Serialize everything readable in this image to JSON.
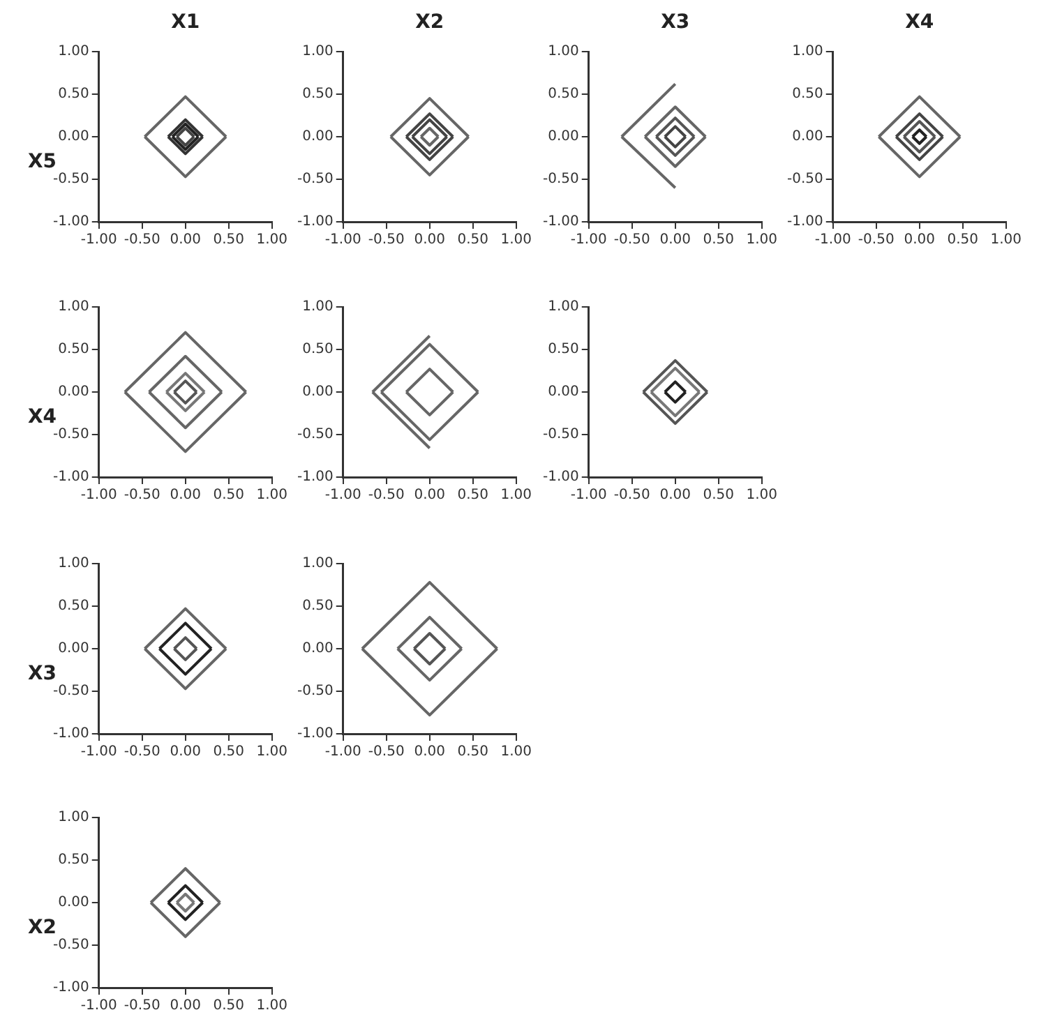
{
  "chart_data": [
    {
      "type": "line",
      "title": "X1",
      "ylabel": "X5",
      "xlim": [
        -1,
        1
      ],
      "ylim": [
        -1,
        1
      ],
      "xticks": [
        {
          "value": -1,
          "label": "-1.00"
        },
        {
          "value": -0.5,
          "label": "-0.50"
        },
        {
          "value": 0,
          "label": "0.00"
        },
        {
          "value": 0.5,
          "label": "0.50"
        },
        {
          "value": 1,
          "label": "1.00"
        }
      ],
      "yticks": [
        {
          "value": -1,
          "label": "-1.00"
        },
        {
          "value": -0.5,
          "label": "-0.50"
        },
        {
          "value": 0,
          "label": "0.00"
        },
        {
          "value": 0.5,
          "label": "0.50"
        },
        {
          "value": 1,
          "label": "1.00"
        }
      ],
      "grid": false,
      "legend": false,
      "marker": "none",
      "series": [
        {
          "color": "#666666",
          "x": [
            -0.47,
            0,
            0.47
          ],
          "values": [
            0,
            0.47,
            0
          ]
        },
        {
          "color": "#666666",
          "x": [
            -0.47,
            0,
            0.47
          ],
          "values": [
            0,
            -0.47,
            0
          ]
        },
        {
          "color": "#333333",
          "x": [
            -0.2,
            0,
            0.2
          ],
          "values": [
            0,
            0.2,
            0
          ]
        },
        {
          "color": "#333333",
          "x": [
            -0.2,
            0,
            0.2
          ],
          "values": [
            0,
            -0.2,
            0
          ]
        },
        {
          "color": "#222222",
          "x": [
            -0.15,
            0,
            0.15
          ],
          "values": [
            0,
            0.15,
            0
          ]
        },
        {
          "color": "#222222",
          "x": [
            -0.15,
            0,
            0.15
          ],
          "values": [
            0,
            -0.15,
            0
          ]
        },
        {
          "color": "#444444",
          "x": [
            -0.1,
            0,
            0.1
          ],
          "values": [
            0,
            0.1,
            0
          ]
        },
        {
          "color": "#444444",
          "x": [
            -0.1,
            0,
            0.1
          ],
          "values": [
            0,
            -0.1,
            0
          ]
        }
      ]
    },
    {
      "type": "line",
      "title": "X2",
      "xlim": [
        -1,
        1
      ],
      "ylim": [
        -1,
        1
      ],
      "xticks": [
        {
          "value": -1,
          "label": "-1.00"
        },
        {
          "value": -0.5,
          "label": "-0.50"
        },
        {
          "value": 0,
          "label": "0.00"
        },
        {
          "value": 0.5,
          "label": "0.50"
        },
        {
          "value": 1,
          "label": "1.00"
        }
      ],
      "yticks": [
        {
          "value": -1,
          "label": "-1.00"
        },
        {
          "value": -0.5,
          "label": "-0.50"
        },
        {
          "value": 0,
          "label": "0.00"
        },
        {
          "value": 0.5,
          "label": "0.50"
        },
        {
          "value": 1,
          "label": "1.00"
        }
      ],
      "grid": false,
      "legend": false,
      "marker": "none",
      "series": [
        {
          "color": "#666666",
          "x": [
            -0.45,
            0,
            0.45
          ],
          "values": [
            0,
            0.45,
            0
          ]
        },
        {
          "color": "#666666",
          "x": [
            -0.45,
            0,
            0.45
          ],
          "values": [
            0,
            -0.45,
            0
          ]
        },
        {
          "color": "#444444",
          "x": [
            -0.27,
            0,
            0.27
          ],
          "values": [
            0,
            0.27,
            0
          ]
        },
        {
          "color": "#444444",
          "x": [
            -0.27,
            0,
            0.27
          ],
          "values": [
            0,
            -0.27,
            0
          ]
        },
        {
          "color": "#444444",
          "x": [
            -0.2,
            0,
            0.2
          ],
          "values": [
            0,
            0.2,
            0
          ]
        },
        {
          "color": "#444444",
          "x": [
            -0.2,
            0,
            0.2
          ],
          "values": [
            0,
            -0.2,
            0
          ]
        },
        {
          "color": "#666666",
          "x": [
            -0.1,
            0,
            0.1
          ],
          "values": [
            0,
            0.1,
            0
          ]
        },
        {
          "color": "#666666",
          "x": [
            -0.1,
            0,
            0.1
          ],
          "values": [
            0,
            -0.1,
            0
          ]
        }
      ]
    },
    {
      "type": "line",
      "title": "X3",
      "xlim": [
        -1,
        1
      ],
      "ylim": [
        -1,
        1
      ],
      "xticks": [
        {
          "value": -1,
          "label": "-1.00"
        },
        {
          "value": -0.5,
          "label": "-0.50"
        },
        {
          "value": 0,
          "label": "0.00"
        },
        {
          "value": 0.5,
          "label": "0.50"
        },
        {
          "value": 1,
          "label": "1.00"
        }
      ],
      "yticks": [
        {
          "value": -1,
          "label": "-1.00"
        },
        {
          "value": -0.5,
          "label": "-0.50"
        },
        {
          "value": 0,
          "label": "0.00"
        },
        {
          "value": 0.5,
          "label": "0.50"
        },
        {
          "value": 1,
          "label": "1.00"
        }
      ],
      "grid": false,
      "legend": false,
      "marker": "none",
      "series": [
        {
          "color": "#666666",
          "x": [
            -0.62,
            0
          ],
          "values": [
            0,
            0.62
          ]
        },
        {
          "color": "#666666",
          "x": [
            -0.62,
            0
          ],
          "values": [
            0,
            -0.6
          ]
        },
        {
          "color": "#666666",
          "x": [
            -0.35,
            0,
            0.35
          ],
          "values": [
            0,
            0.35,
            0
          ]
        },
        {
          "color": "#666666",
          "x": [
            -0.35,
            0,
            0.35
          ],
          "values": [
            0,
            -0.35,
            0
          ]
        },
        {
          "color": "#555555",
          "x": [
            -0.22,
            0,
            0.22
          ],
          "values": [
            0,
            0.22,
            0
          ]
        },
        {
          "color": "#555555",
          "x": [
            -0.22,
            0,
            0.22
          ],
          "values": [
            0,
            -0.22,
            0
          ]
        },
        {
          "color": "#444444",
          "x": [
            -0.12,
            0,
            0.12
          ],
          "values": [
            0,
            0.12,
            0
          ]
        },
        {
          "color": "#444444",
          "x": [
            -0.12,
            0,
            0.12
          ],
          "values": [
            0,
            -0.12,
            0
          ]
        }
      ]
    },
    {
      "type": "line",
      "title": "X4",
      "xlim": [
        -1,
        1
      ],
      "ylim": [
        -1,
        1
      ],
      "xticks": [
        {
          "value": -1,
          "label": "-1.00"
        },
        {
          "value": -0.5,
          "label": "-0.50"
        },
        {
          "value": 0,
          "label": "0.00"
        },
        {
          "value": 0.5,
          "label": "0.50"
        },
        {
          "value": 1,
          "label": "1.00"
        }
      ],
      "yticks": [
        {
          "value": -1,
          "label": "-1.00"
        },
        {
          "value": -0.5,
          "label": "-0.50"
        },
        {
          "value": 0,
          "label": "0.00"
        },
        {
          "value": 0.5,
          "label": "0.50"
        },
        {
          "value": 1,
          "label": "1.00"
        }
      ],
      "grid": false,
      "legend": false,
      "marker": "none",
      "series": [
        {
          "color": "#666666",
          "x": [
            -0.47,
            0,
            0.47
          ],
          "values": [
            0,
            0.47,
            0
          ]
        },
        {
          "color": "#666666",
          "x": [
            -0.47,
            0,
            0.47
          ],
          "values": [
            0,
            -0.47,
            0
          ]
        },
        {
          "color": "#444444",
          "x": [
            -0.27,
            0,
            0.27
          ],
          "values": [
            0,
            0.27,
            0
          ]
        },
        {
          "color": "#444444",
          "x": [
            -0.27,
            0,
            0.27
          ],
          "values": [
            0,
            -0.27,
            0
          ]
        },
        {
          "color": "#555555",
          "x": [
            -0.18,
            0,
            0.18
          ],
          "values": [
            0,
            0.18,
            0
          ]
        },
        {
          "color": "#555555",
          "x": [
            -0.18,
            0,
            0.18
          ],
          "values": [
            0,
            -0.18,
            0
          ]
        },
        {
          "color": "#222222",
          "x": [
            -0.08,
            0,
            0.08
          ],
          "values": [
            0,
            0.08,
            0
          ]
        },
        {
          "color": "#222222",
          "x": [
            -0.08,
            0,
            0.08
          ],
          "values": [
            0,
            -0.08,
            0
          ]
        }
      ]
    },
    {
      "type": "line",
      "ylabel": "X4",
      "xlim": [
        -1,
        1
      ],
      "ylim": [
        -1,
        1
      ],
      "xticks": [
        {
          "value": -1,
          "label": "-1.00"
        },
        {
          "value": -0.5,
          "label": "-0.50"
        },
        {
          "value": 0,
          "label": "0.00"
        },
        {
          "value": 0.5,
          "label": "0.50"
        },
        {
          "value": 1,
          "label": "1.00"
        }
      ],
      "yticks": [
        {
          "value": -1,
          "label": "-1.00"
        },
        {
          "value": -0.5,
          "label": "-0.50"
        },
        {
          "value": 0,
          "label": "0.00"
        },
        {
          "value": 0.5,
          "label": "0.50"
        },
        {
          "value": 1,
          "label": "1.00"
        }
      ],
      "grid": false,
      "legend": false,
      "marker": "none",
      "series": [
        {
          "color": "#666666",
          "x": [
            -0.7,
            0,
            0.7
          ],
          "values": [
            0,
            0.7,
            0
          ]
        },
        {
          "color": "#666666",
          "x": [
            -0.7,
            0,
            0.7
          ],
          "values": [
            0,
            -0.7,
            0
          ]
        },
        {
          "color": "#666666",
          "x": [
            -0.42,
            0,
            0.42
          ],
          "values": [
            0,
            0.42,
            0
          ]
        },
        {
          "color": "#666666",
          "x": [
            -0.42,
            0,
            0.42
          ],
          "values": [
            0,
            -0.42,
            0
          ]
        },
        {
          "color": "#777777",
          "x": [
            -0.22,
            0,
            0.22
          ],
          "values": [
            0,
            0.22,
            0
          ]
        },
        {
          "color": "#777777",
          "x": [
            -0.22,
            0,
            0.22
          ],
          "values": [
            0,
            -0.22,
            0
          ]
        },
        {
          "color": "#555555",
          "x": [
            -0.13,
            0,
            0.13
          ],
          "values": [
            0,
            0.13,
            0
          ]
        },
        {
          "color": "#555555",
          "x": [
            -0.13,
            0,
            0.13
          ],
          "values": [
            0,
            -0.13,
            0
          ]
        }
      ]
    },
    {
      "type": "line",
      "xlim": [
        -1,
        1
      ],
      "ylim": [
        -1,
        1
      ],
      "xticks": [
        {
          "value": -1,
          "label": "-1.00"
        },
        {
          "value": -0.5,
          "label": "-0.50"
        },
        {
          "value": 0,
          "label": "0.00"
        },
        {
          "value": 0.5,
          "label": "0.50"
        },
        {
          "value": 1,
          "label": "1.00"
        }
      ],
      "yticks": [
        {
          "value": -1,
          "label": "-1.00"
        },
        {
          "value": -0.5,
          "label": "-0.50"
        },
        {
          "value": 0,
          "label": "0.00"
        },
        {
          "value": 0.5,
          "label": "0.50"
        },
        {
          "value": 1,
          "label": "1.00"
        }
      ],
      "grid": false,
      "legend": false,
      "marker": "none",
      "series": [
        {
          "color": "#666666",
          "x": [
            -0.66,
            0
          ],
          "values": [
            0,
            0.66
          ]
        },
        {
          "color": "#666666",
          "x": [
            -0.66,
            0
          ],
          "values": [
            0,
            -0.66
          ]
        },
        {
          "color": "#666666",
          "x": [
            -0.56,
            0,
            0.56
          ],
          "values": [
            0,
            0.56,
            0
          ]
        },
        {
          "color": "#666666",
          "x": [
            -0.56,
            0,
            0.56
          ],
          "values": [
            0,
            -0.56,
            0
          ]
        },
        {
          "color": "#666666",
          "x": [
            -0.27,
            0,
            0.27
          ],
          "values": [
            0,
            0.27,
            0
          ]
        },
        {
          "color": "#666666",
          "x": [
            -0.27,
            0,
            0.27
          ],
          "values": [
            0,
            -0.27,
            0
          ]
        }
      ]
    },
    {
      "type": "line",
      "xlim": [
        -1,
        1
      ],
      "ylim": [
        -1,
        1
      ],
      "xticks": [
        {
          "value": -1,
          "label": "-1.00"
        },
        {
          "value": -0.5,
          "label": "-0.50"
        },
        {
          "value": 0,
          "label": "0.00"
        },
        {
          "value": 0.5,
          "label": "0.50"
        },
        {
          "value": 1,
          "label": "1.00"
        }
      ],
      "yticks": [
        {
          "value": -1,
          "label": "-1.00"
        },
        {
          "value": -0.5,
          "label": "-0.50"
        },
        {
          "value": 0,
          "label": "0.00"
        },
        {
          "value": 0.5,
          "label": "0.50"
        },
        {
          "value": 1,
          "label": "1.00"
        }
      ],
      "grid": false,
      "legend": false,
      "marker": "none",
      "series": [
        {
          "color": "#555555",
          "x": [
            -0.37,
            0,
            0.37
          ],
          "values": [
            0,
            0.37,
            0
          ]
        },
        {
          "color": "#555555",
          "x": [
            -0.37,
            0,
            0.37
          ],
          "values": [
            0,
            -0.37,
            0
          ]
        },
        {
          "color": "#777777",
          "x": [
            -0.28,
            0,
            0.28
          ],
          "values": [
            0,
            0.28,
            0
          ]
        },
        {
          "color": "#777777",
          "x": [
            -0.28,
            0,
            0.28
          ],
          "values": [
            0,
            -0.28,
            0
          ]
        },
        {
          "color": "#222222",
          "x": [
            -0.12,
            0,
            0.12
          ],
          "values": [
            0,
            0.12,
            0
          ]
        },
        {
          "color": "#222222",
          "x": [
            -0.12,
            0,
            0.12
          ],
          "values": [
            0,
            -0.12,
            0
          ]
        }
      ]
    },
    {
      "type": "line",
      "ylabel": "X3",
      "xlim": [
        -1,
        1
      ],
      "ylim": [
        -1,
        1
      ],
      "xticks": [
        {
          "value": -1,
          "label": "-1.00"
        },
        {
          "value": -0.5,
          "label": "-0.50"
        },
        {
          "value": 0,
          "label": "0.00"
        },
        {
          "value": 0.5,
          "label": "0.50"
        },
        {
          "value": 1,
          "label": "1.00"
        }
      ],
      "yticks": [
        {
          "value": -1,
          "label": "-1.00"
        },
        {
          "value": -0.5,
          "label": "-0.50"
        },
        {
          "value": 0,
          "label": "0.00"
        },
        {
          "value": 0.5,
          "label": "0.50"
        },
        {
          "value": 1,
          "label": "1.00"
        }
      ],
      "grid": false,
      "legend": false,
      "marker": "none",
      "series": [
        {
          "color": "#666666",
          "x": [
            -0.47,
            0,
            0.47
          ],
          "values": [
            0,
            0.47,
            0
          ]
        },
        {
          "color": "#666666",
          "x": [
            -0.47,
            0,
            0.47
          ],
          "values": [
            0,
            -0.47,
            0
          ]
        },
        {
          "color": "#222222",
          "x": [
            -0.3,
            0,
            0.3
          ],
          "values": [
            0,
            0.3,
            0
          ]
        },
        {
          "color": "#222222",
          "x": [
            -0.3,
            0,
            0.3
          ],
          "values": [
            0,
            -0.3,
            0
          ]
        },
        {
          "color": "#555555",
          "x": [
            -0.13,
            0,
            0.13
          ],
          "values": [
            0,
            0.13,
            0
          ]
        },
        {
          "color": "#555555",
          "x": [
            -0.13,
            0,
            0.13
          ],
          "values": [
            0,
            -0.13,
            0
          ]
        }
      ]
    },
    {
      "type": "line",
      "xlim": [
        -1,
        1
      ],
      "ylim": [
        -1,
        1
      ],
      "xticks": [
        {
          "value": -1,
          "label": "-1.00"
        },
        {
          "value": -0.5,
          "label": "-0.50"
        },
        {
          "value": 0,
          "label": "0.00"
        },
        {
          "value": 0.5,
          "label": "0.50"
        },
        {
          "value": 1,
          "label": "1.00"
        }
      ],
      "yticks": [
        {
          "value": -1,
          "label": "-1.00"
        },
        {
          "value": -0.5,
          "label": "-0.50"
        },
        {
          "value": 0,
          "label": "0.00"
        },
        {
          "value": 0.5,
          "label": "0.50"
        },
        {
          "value": 1,
          "label": "1.00"
        }
      ],
      "grid": false,
      "legend": false,
      "marker": "none",
      "series": [
        {
          "color": "#666666",
          "x": [
            -0.78,
            0,
            0.78
          ],
          "values": [
            0,
            0.78,
            0
          ]
        },
        {
          "color": "#666666",
          "x": [
            -0.78,
            0,
            0.78
          ],
          "values": [
            0,
            -0.78,
            0
          ]
        },
        {
          "color": "#666666",
          "x": [
            -0.37,
            0,
            0.37
          ],
          "values": [
            0,
            0.37,
            0
          ]
        },
        {
          "color": "#666666",
          "x": [
            -0.37,
            0,
            0.37
          ],
          "values": [
            0,
            -0.37,
            0
          ]
        },
        {
          "color": "#555555",
          "x": [
            -0.18,
            0,
            0.18
          ],
          "values": [
            0,
            0.18,
            0
          ]
        },
        {
          "color": "#555555",
          "x": [
            -0.18,
            0,
            0.18
          ],
          "values": [
            0,
            -0.18,
            0
          ]
        }
      ]
    },
    {
      "type": "line",
      "ylabel": "X2",
      "xlim": [
        -1,
        1
      ],
      "ylim": [
        -1,
        1
      ],
      "xticks": [
        {
          "value": -1,
          "label": "-1.00"
        },
        {
          "value": -0.5,
          "label": "-0.50"
        },
        {
          "value": 0,
          "label": "0.00"
        },
        {
          "value": 0.5,
          "label": "0.50"
        },
        {
          "value": 1,
          "label": "1.00"
        }
      ],
      "yticks": [
        {
          "value": -1,
          "label": "-1.00"
        },
        {
          "value": -0.5,
          "label": "-0.50"
        },
        {
          "value": 0,
          "label": "0.00"
        },
        {
          "value": 0.5,
          "label": "0.50"
        },
        {
          "value": 1,
          "label": "1.00"
        }
      ],
      "grid": false,
      "legend": false,
      "marker": "none",
      "series": [
        {
          "color": "#666666",
          "x": [
            -0.4,
            0,
            0.4
          ],
          "values": [
            0,
            0.4,
            0
          ]
        },
        {
          "color": "#666666",
          "x": [
            -0.4,
            0,
            0.4
          ],
          "values": [
            0,
            -0.4,
            0
          ]
        },
        {
          "color": "#222222",
          "x": [
            -0.2,
            0,
            0.2
          ],
          "values": [
            0,
            0.2,
            0
          ]
        },
        {
          "color": "#222222",
          "x": [
            -0.2,
            0,
            0.2
          ],
          "values": [
            0,
            -0.2,
            0
          ]
        },
        {
          "color": "#777777",
          "x": [
            -0.1,
            0,
            0.1
          ],
          "values": [
            0,
            0.1,
            0
          ]
        },
        {
          "color": "#777777",
          "x": [
            -0.1,
            0,
            0.1
          ],
          "values": [
            0,
            -0.1,
            0
          ]
        }
      ]
    }
  ]
}
